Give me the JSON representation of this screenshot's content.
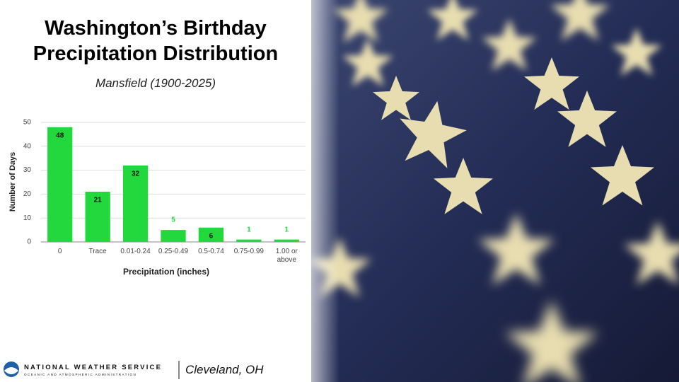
{
  "title": "Washington’s Birthday Precipitation Distribution",
  "subtitle": "Mansfield (1900-2025)",
  "footer": {
    "agency": "NATIONAL WEATHER SERVICE",
    "agency_sub": "OCEANIC AND ATMOSPHERIC ADMINISTRATION",
    "office": "Cleveland, OH"
  },
  "chart_data": {
    "type": "bar",
    "categories": [
      "0",
      "Trace",
      "0.01-0.24",
      "0.25-0.49",
      "0.5-0.74",
      "0.75-0.99",
      "1.00 or above"
    ],
    "values": [
      48,
      21,
      32,
      5,
      6,
      1,
      1
    ],
    "color": "#22d83c",
    "x_label": "Precipitation (inches)",
    "y_label": "Number of Days",
    "ylim": [
      0,
      50
    ],
    "yticks": [
      0,
      10,
      20,
      30,
      40,
      50
    ],
    "grid": true
  }
}
